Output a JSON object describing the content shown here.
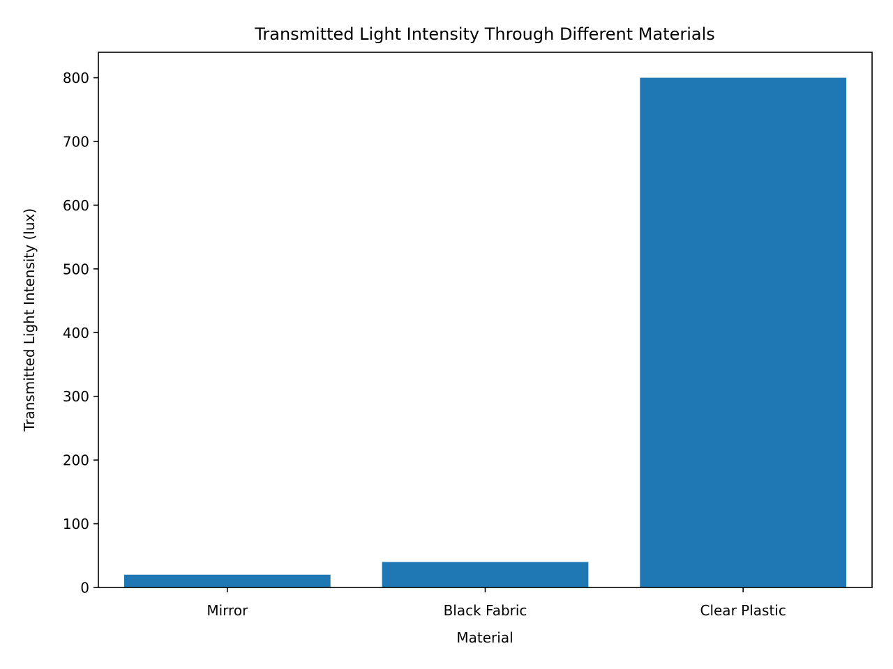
{
  "chart_data": {
    "type": "bar",
    "title": "Transmitted Light Intensity Through Different Materials",
    "xlabel": "Material",
    "ylabel": "Transmitted Light Intensity (lux)",
    "categories": [
      "Mirror",
      "Black Fabric",
      "Clear Plastic"
    ],
    "values": [
      20,
      40,
      800
    ],
    "ylim": [
      0,
      840
    ],
    "yticks": [
      0,
      100,
      200,
      300,
      400,
      500,
      600,
      700,
      800
    ],
    "grid": false,
    "legend": "none",
    "bar_color": "#1f77b4"
  }
}
